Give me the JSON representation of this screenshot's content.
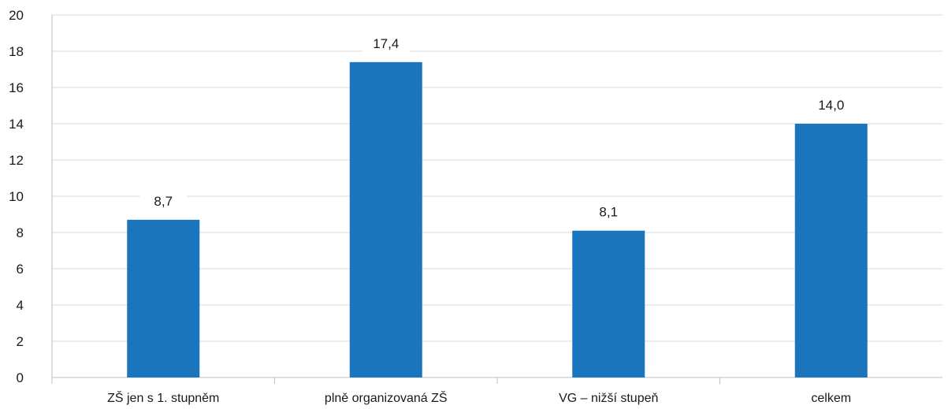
{
  "chart_data": {
    "type": "bar",
    "categories": [
      "ZŠ jen s 1. stupněm",
      "plně organizovaná ZŠ",
      "VG – nižší stupeň",
      "celkem"
    ],
    "values": [
      8.7,
      17.4,
      8.1,
      14.0
    ],
    "data_labels": [
      "8,7",
      "17,4",
      "8,1",
      "14,0"
    ],
    "title": "",
    "xlabel": "",
    "ylabel": "",
    "ylim": [
      0,
      20
    ],
    "yticks": [
      0,
      2,
      4,
      6,
      8,
      10,
      12,
      14,
      16,
      18,
      20
    ],
    "grid": true,
    "legend": "none",
    "bar_color": "#1b75bc"
  }
}
